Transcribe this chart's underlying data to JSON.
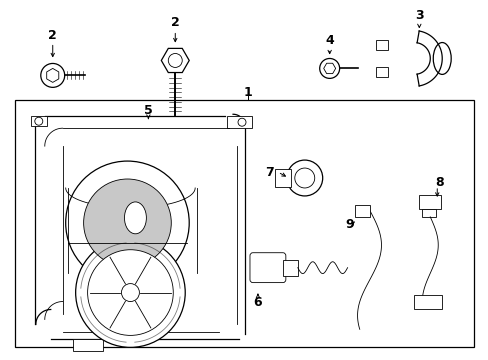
{
  "bg_color": "#ffffff",
  "line_color": "#000000",
  "gray": "#c8c8c8"
}
